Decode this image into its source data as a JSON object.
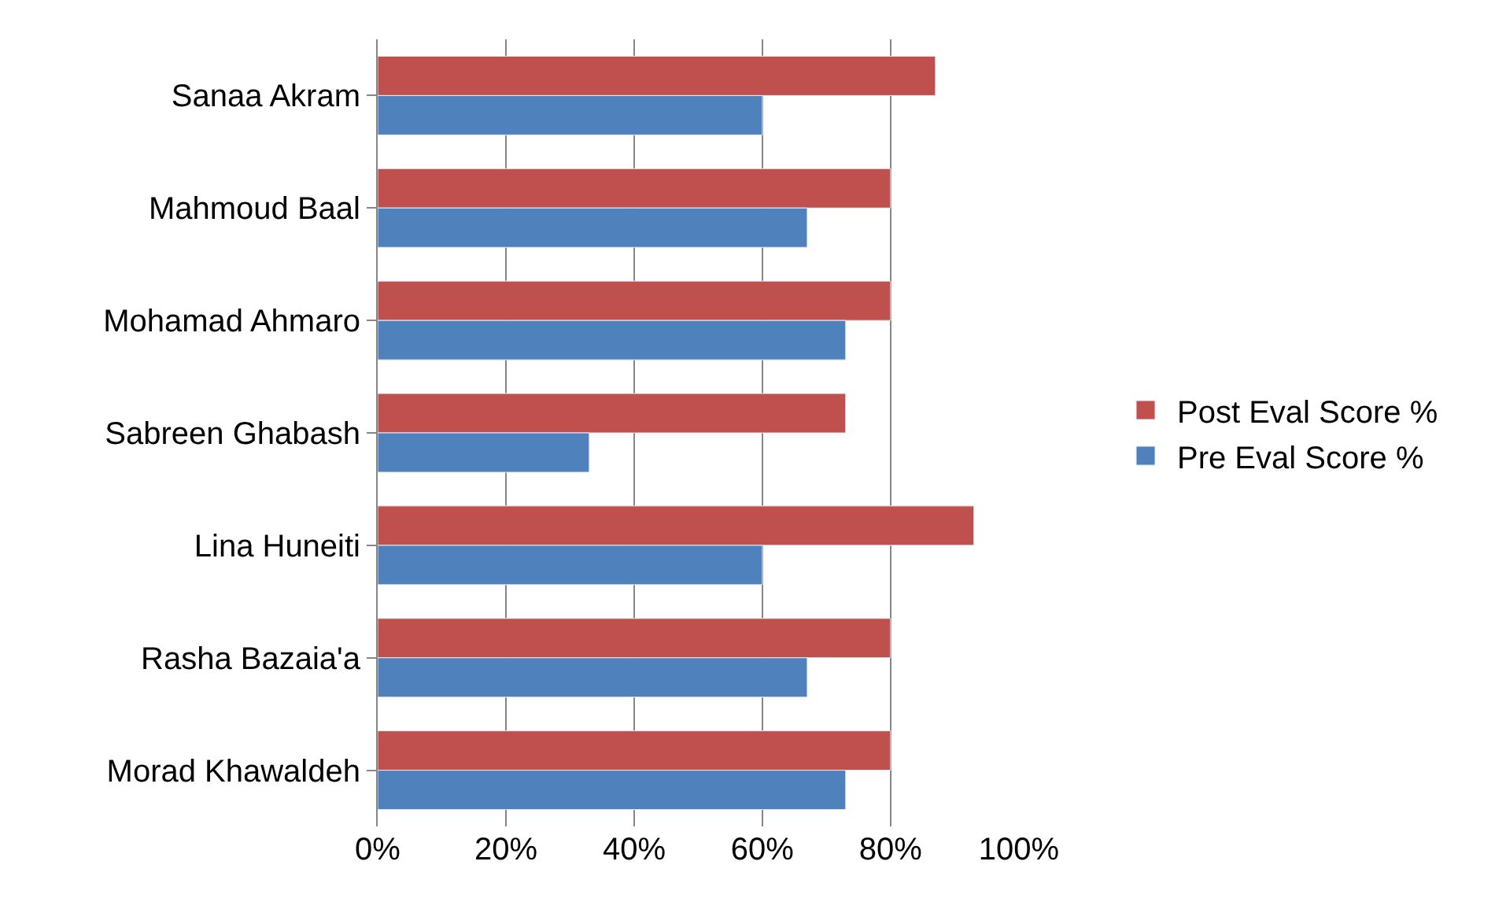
{
  "chart_data": {
    "type": "bar",
    "orientation": "horizontal",
    "categories": [
      "Sanaa Akram",
      "Mahmoud Baal",
      "Mohamad Ahmaro",
      "Sabreen Ghabash",
      "Lina Huneiti",
      "Rasha Bazaia'a",
      "Morad Khawaldeh"
    ],
    "series": [
      {
        "name": "Post Eval Score %",
        "color": "#c0504d",
        "values": [
          87,
          80,
          80,
          73,
          93,
          80,
          80
        ]
      },
      {
        "name": "Pre Eval Score %",
        "color": "#4f81bd",
        "values": [
          60,
          67,
          73,
          33,
          60,
          67,
          73
        ]
      }
    ],
    "xlim": [
      0,
      100
    ],
    "xticks": [
      {
        "value": 0,
        "label": "0%"
      },
      {
        "value": 20,
        "label": "20%"
      },
      {
        "value": 40,
        "label": "40%"
      },
      {
        "value": 60,
        "label": "60%"
      },
      {
        "value": 80,
        "label": "80%"
      },
      {
        "value": 100,
        "label": "100%"
      }
    ],
    "grid": "x",
    "legend": "right"
  }
}
